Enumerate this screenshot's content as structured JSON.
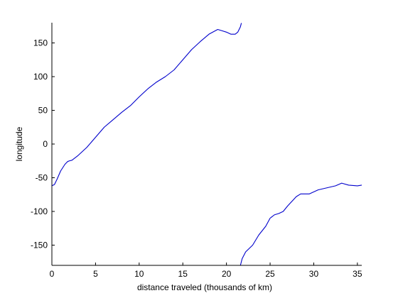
{
  "chart_data": {
    "type": "line",
    "title": "",
    "xlabel": "distance traveled (thousands of km)",
    "ylabel": "longitude",
    "xlim": [
      0,
      35.5
    ],
    "ylim": [
      -180,
      180
    ],
    "xticks": [
      0,
      5,
      10,
      15,
      20,
      25,
      30,
      35
    ],
    "yticks": [
      -150,
      -100,
      -50,
      0,
      50,
      100,
      150
    ],
    "grid": false,
    "color": "#0000cc",
    "series": [
      {
        "name": "segment-1",
        "x": [
          0,
          0.3,
          0.6,
          1.0,
          1.5,
          1.8,
          2.0,
          2.3,
          3.0,
          4.0,
          5.0,
          6.0,
          7.0,
          8.0,
          9.0,
          10.0,
          11.0,
          12.0,
          13.0,
          14.0,
          15.0,
          16.0,
          17.0,
          18.0,
          19.0,
          19.5,
          20.0,
          20.5,
          21.0,
          21.3,
          21.6,
          21.7
        ],
        "y": [
          -62,
          -60,
          -52,
          -40,
          -30,
          -26,
          -25,
          -24,
          -17,
          -5,
          10,
          25,
          36,
          47,
          57,
          70,
          82,
          92,
          100,
          110,
          125,
          140,
          152,
          163,
          170,
          168,
          166,
          163,
          163,
          166,
          174,
          179
        ]
      },
      {
        "name": "segment-2",
        "x": [
          21.6,
          21.8,
          22.2,
          23.0,
          23.7,
          24.5,
          25.0,
          25.5,
          26.0,
          26.5,
          27.0,
          28.0,
          28.5,
          29.5,
          30.5,
          31.5,
          32.5,
          33.2,
          34.0,
          35.0,
          35.5
        ],
        "y": [
          -180,
          -170,
          -160,
          -150,
          -135,
          -122,
          -110,
          -105,
          -103,
          -100,
          -92,
          -78,
          -74,
          -74,
          -68,
          -65,
          -62,
          -58,
          -61,
          -62,
          -61
        ]
      }
    ]
  }
}
